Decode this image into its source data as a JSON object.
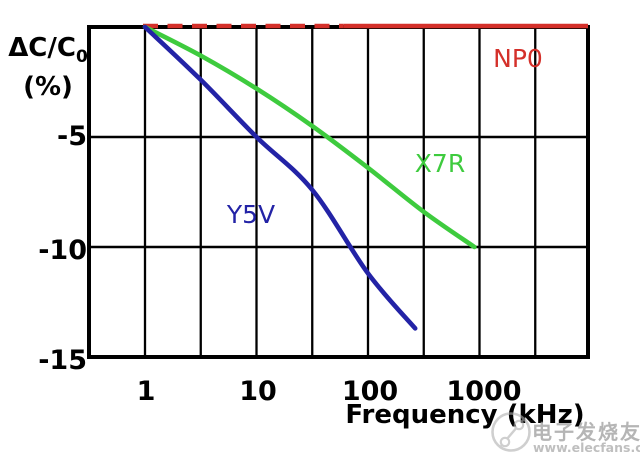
{
  "page": {
    "background": "#ffffff"
  },
  "chart_data": {
    "type": "line",
    "title": "",
    "x_axis": {
      "label": "Frequency (kHz)",
      "scale": "log",
      "range_khz": [
        0.316,
        9400
      ],
      "tick_values": [
        1,
        10,
        100,
        1000
      ],
      "tick_labels": [
        "1",
        "10",
        "100",
        "1000"
      ],
      "minor_gridlines": "every half decade"
    },
    "y_axis": {
      "title_main": "ΔC/C",
      "title_sub": "0",
      "title_unit": "(%)",
      "range_pct": [
        -15,
        0
      ],
      "tick_values": [
        -5,
        -10,
        -15
      ],
      "tick_labels": [
        "-5",
        "-10",
        "-15"
      ]
    },
    "grid": true,
    "legend_position": "labels next to curves",
    "series": [
      {
        "name": "NP0",
        "color": "#d4302a",
        "line_style": "dashed-then-solid",
        "dash_until_khz": 60,
        "points": [
          [
            1,
            0
          ],
          [
            60,
            0
          ],
          [
            9400,
            0
          ]
        ]
      },
      {
        "name": "X7R",
        "color": "#3ecb3e",
        "line_style": "solid",
        "points": [
          [
            1,
            0
          ],
          [
            3.16,
            -1.3
          ],
          [
            10,
            -2.8
          ],
          [
            31.6,
            -4.5
          ],
          [
            100,
            -6.4
          ],
          [
            316,
            -8.4
          ],
          [
            900,
            -10
          ]
        ]
      },
      {
        "name": "Y5V",
        "color": "#2323a6",
        "line_style": "solid",
        "points": [
          [
            1,
            0
          ],
          [
            3.16,
            -2.4
          ],
          [
            10,
            -5
          ],
          [
            31.6,
            -7.4
          ],
          [
            100,
            -11.2
          ],
          [
            265,
            -13.7
          ]
        ]
      }
    ]
  },
  "watermark": {
    "site_name": "电子发烧友",
    "url": "www.elecfans.com",
    "color": "#aaaaaa"
  }
}
